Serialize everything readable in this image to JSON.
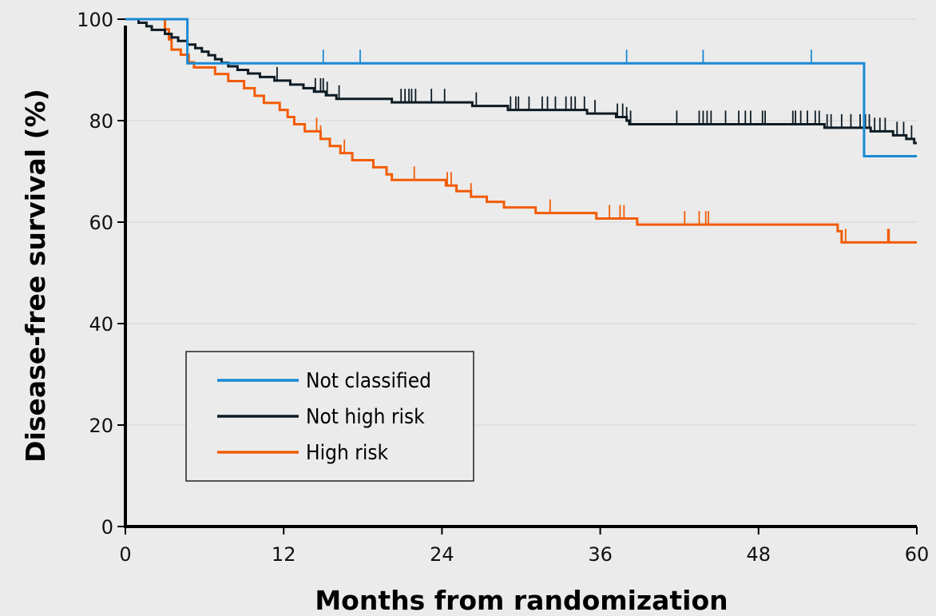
{
  "chart_data": {
    "type": "line",
    "title": "",
    "xlabel": "Months from randomization",
    "ylabel": "Disease-free survival (%)",
    "xlim": [
      0,
      60
    ],
    "ylim": [
      0,
      100
    ],
    "x_ticks": [
      0,
      12,
      24,
      36,
      48,
      60
    ],
    "y_ticks": [
      0,
      20,
      40,
      60,
      80,
      100
    ],
    "grid": "horizontal",
    "legend_position": "lower-left",
    "colors": {
      "not_classified": "#1a8ad4",
      "not_high_risk": "#0d1b24",
      "high_risk": "#f25c05"
    },
    "series": [
      {
        "name": "Not classified",
        "color": "#1a8ad4",
        "steps": [
          [
            0,
            100
          ],
          [
            4.7,
            91.3
          ],
          [
            56.0,
            73.0
          ],
          [
            60,
            73.0
          ]
        ],
        "censors": [
          15.0,
          17.8,
          38.0,
          43.8,
          52.0,
          56.0
        ]
      },
      {
        "name": "Not high risk",
        "color": "#0d1b24",
        "steps": [
          [
            0,
            100
          ],
          [
            1.0,
            99.3
          ],
          [
            1.6,
            98.6
          ],
          [
            2.0,
            97.9
          ],
          [
            3.0,
            97.1
          ],
          [
            3.5,
            96.4
          ],
          [
            4.0,
            95.7
          ],
          [
            4.7,
            95.0
          ],
          [
            5.3,
            94.3
          ],
          [
            5.8,
            93.6
          ],
          [
            6.3,
            92.9
          ],
          [
            6.8,
            92.1
          ],
          [
            7.3,
            91.4
          ],
          [
            7.8,
            90.7
          ],
          [
            8.5,
            90.0
          ],
          [
            9.3,
            89.3
          ],
          [
            10.2,
            88.6
          ],
          [
            11.3,
            87.9
          ],
          [
            12.5,
            87.1
          ],
          [
            13.5,
            86.4
          ],
          [
            14.3,
            85.7
          ],
          [
            15.2,
            85.0
          ],
          [
            16.0,
            84.3
          ],
          [
            20.2,
            83.6
          ],
          [
            26.3,
            82.9
          ],
          [
            29.0,
            82.1
          ],
          [
            35.0,
            81.4
          ],
          [
            37.2,
            80.7
          ],
          [
            38.0,
            80.0
          ],
          [
            38.2,
            79.3
          ],
          [
            53.0,
            78.6
          ],
          [
            56.5,
            77.9
          ],
          [
            58.2,
            77.1
          ],
          [
            59.2,
            76.4
          ],
          [
            59.8,
            75.6
          ],
          [
            60,
            75.6
          ]
        ],
        "censors": [
          11.5,
          14.4,
          14.8,
          15.0,
          15.3,
          16.2,
          20.9,
          21.2,
          21.5,
          21.7,
          22.0,
          23.2,
          24.2,
          26.6,
          29.2,
          29.6,
          29.8,
          30.6,
          31.6,
          32.0,
          32.6,
          33.4,
          33.8,
          34.1,
          34.8,
          35.6,
          37.3,
          37.7,
          38.0,
          38.3,
          41.8,
          43.5,
          43.8,
          44.1,
          44.4,
          45.5,
          46.5,
          47.0,
          47.4,
          48.3,
          48.5,
          50.6,
          50.8,
          51.2,
          51.7,
          52.3,
          52.6,
          53.2,
          53.5,
          54.3,
          55.0,
          55.7,
          56.1,
          56.4,
          56.8,
          57.2,
          57.6,
          58.5,
          59.0,
          59.6
        ]
      },
      {
        "name": "High risk",
        "color": "#f25c05",
        "steps": [
          [
            0,
            100
          ],
          [
            3.0,
            98.0
          ],
          [
            3.3,
            96.0
          ],
          [
            3.5,
            94.0
          ],
          [
            4.2,
            93.0
          ],
          [
            4.8,
            91.5
          ],
          [
            5.2,
            90.5
          ],
          [
            6.8,
            89.2
          ],
          [
            7.8,
            87.8
          ],
          [
            9.0,
            86.4
          ],
          [
            9.8,
            84.9
          ],
          [
            10.5,
            83.5
          ],
          [
            11.7,
            82.1
          ],
          [
            12.3,
            80.7
          ],
          [
            12.8,
            79.3
          ],
          [
            13.6,
            77.9
          ],
          [
            14.8,
            76.4
          ],
          [
            15.5,
            75.0
          ],
          [
            16.3,
            73.6
          ],
          [
            17.2,
            72.2
          ],
          [
            18.8,
            70.8
          ],
          [
            19.8,
            69.4
          ],
          [
            20.2,
            68.3
          ],
          [
            24.3,
            67.2
          ],
          [
            25.1,
            66.1
          ],
          [
            26.2,
            65.0
          ],
          [
            27.4,
            64.0
          ],
          [
            28.7,
            62.9
          ],
          [
            31.1,
            61.8
          ],
          [
            35.7,
            60.7
          ],
          [
            38.8,
            59.5
          ],
          [
            54.0,
            58.2
          ],
          [
            54.3,
            56.0
          ],
          [
            60,
            56.0
          ]
        ],
        "censors": [
          14.5,
          14.8,
          16.6,
          21.9,
          24.4,
          24.7,
          26.2,
          32.2,
          36.7,
          37.5,
          37.8,
          42.4,
          43.5,
          44.0,
          44.2,
          54.6,
          57.8,
          57.9
        ]
      }
    ]
  }
}
